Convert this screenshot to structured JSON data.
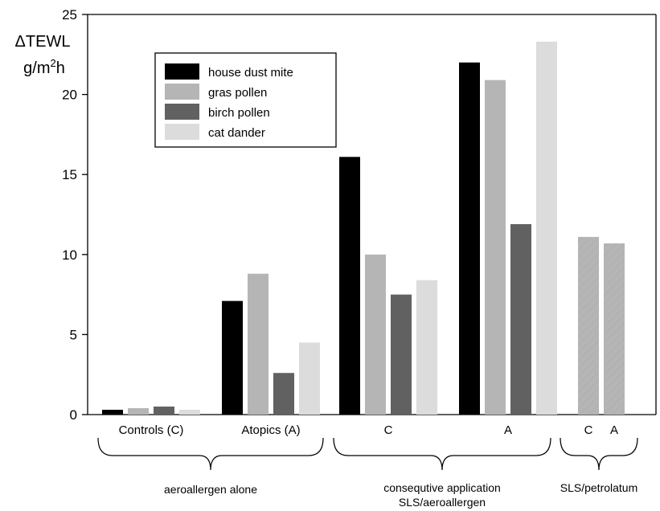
{
  "chart_data": {
    "type": "bar",
    "ylabel": "ΔTEWL",
    "ylabel_unit": {
      "base": "g/m",
      "sup": "2",
      "tail": "h"
    },
    "ylim": [
      0,
      25
    ],
    "yticks": [
      "0",
      "5",
      "10",
      "15",
      "20",
      "25"
    ],
    "categories": [
      "Controls (C)",
      "Atopics (A)",
      "C",
      "A",
      "C",
      "A"
    ],
    "series": [
      {
        "name": "house dust mite",
        "color": "#000000",
        "values": [
          0.3,
          7.1,
          16.1,
          22.0,
          null,
          null
        ]
      },
      {
        "name": "gras pollen",
        "color": "#b5b5b5",
        "values": [
          0.4,
          8.8,
          10.0,
          20.9,
          11.1,
          10.7
        ]
      },
      {
        "name": "birch pollen",
        "color": "#616161",
        "values": [
          0.5,
          2.6,
          7.5,
          11.9,
          null,
          null
        ]
      },
      {
        "name": "cat dander",
        "color": "#dcdcdc",
        "values": [
          0.3,
          4.5,
          8.4,
          23.3,
          null,
          null
        ]
      }
    ],
    "groups": [
      {
        "label_lines": [
          "aeroallergen alone"
        ]
      },
      {
        "label_lines": [
          "consequtive application",
          "SLS/aeroallergen"
        ]
      },
      {
        "label_lines": [
          "SLS/petrolatum"
        ]
      }
    ],
    "legend_position": "top-left"
  }
}
